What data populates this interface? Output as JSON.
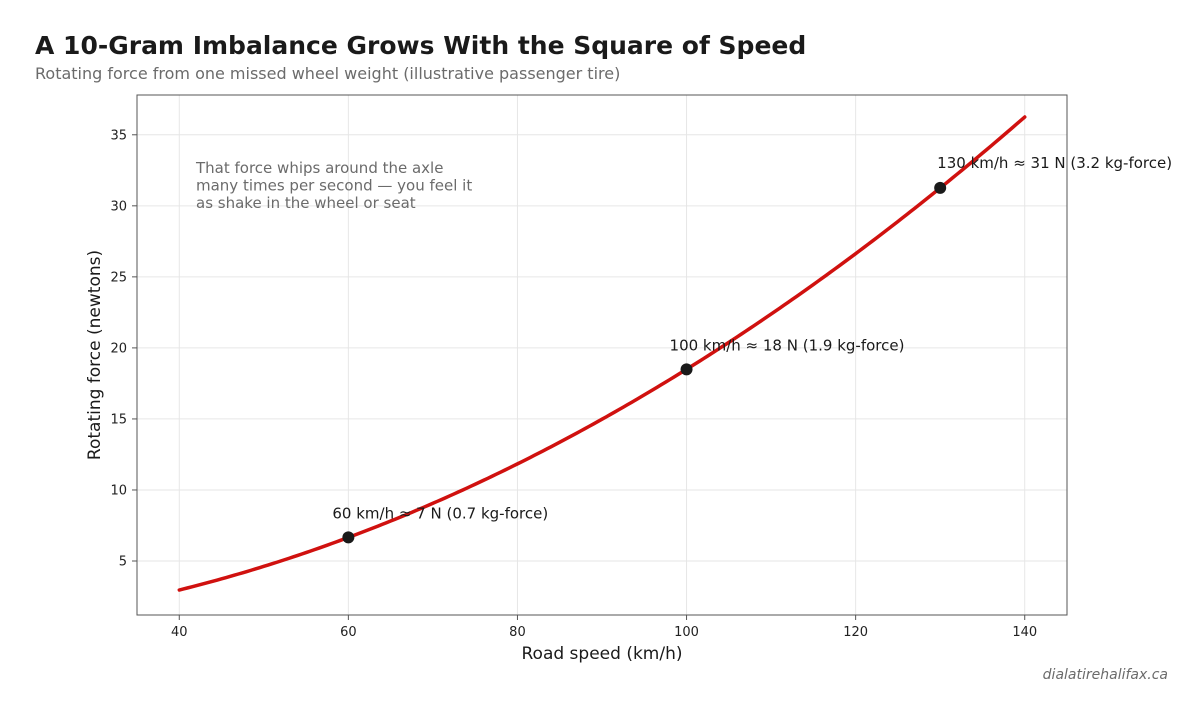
{
  "header": {
    "title": "A 10-Gram Imbalance Grows With the Square of Speed",
    "subtitle": "Rotating force from one missed wheel weight (illustrative passenger tire)"
  },
  "footer": {
    "source": "dialatirehalifax.ca"
  },
  "chart_data": {
    "type": "line",
    "xlabel": "Road speed (km/h)",
    "ylabel": "Rotating force (newtons)",
    "xlim": [
      35,
      145
    ],
    "ylim": [
      1.2,
      37.8
    ],
    "xticks": [
      40,
      60,
      80,
      100,
      120,
      140
    ],
    "yticks": [
      5,
      10,
      15,
      20,
      25,
      30,
      35
    ],
    "grid": true,
    "series": [
      {
        "color": "#d0110f",
        "x": [
          40,
          50,
          60,
          70,
          80,
          90,
          100,
          110,
          120,
          130,
          140
        ],
        "y": [
          2.96,
          4.62,
          6.66,
          9.06,
          11.84,
          14.98,
          18.49,
          22.38,
          26.63,
          31.26,
          36.25
        ]
      }
    ],
    "points": [
      {
        "x": 60,
        "y": 6.66,
        "label": "60 km/h ≈ 7 N (0.7 kg-force)"
      },
      {
        "x": 100,
        "y": 18.49,
        "label": "100 km/h ≈ 18 N (1.9 kg-force)"
      },
      {
        "x": 130,
        "y": 31.26,
        "label": "130 km/h ≈ 31 N (3.2 kg-force)"
      }
    ],
    "note_lines": [
      "That force whips around the axle",
      "many times per second — you feel it",
      "as shake in the wheel or seat"
    ]
  }
}
